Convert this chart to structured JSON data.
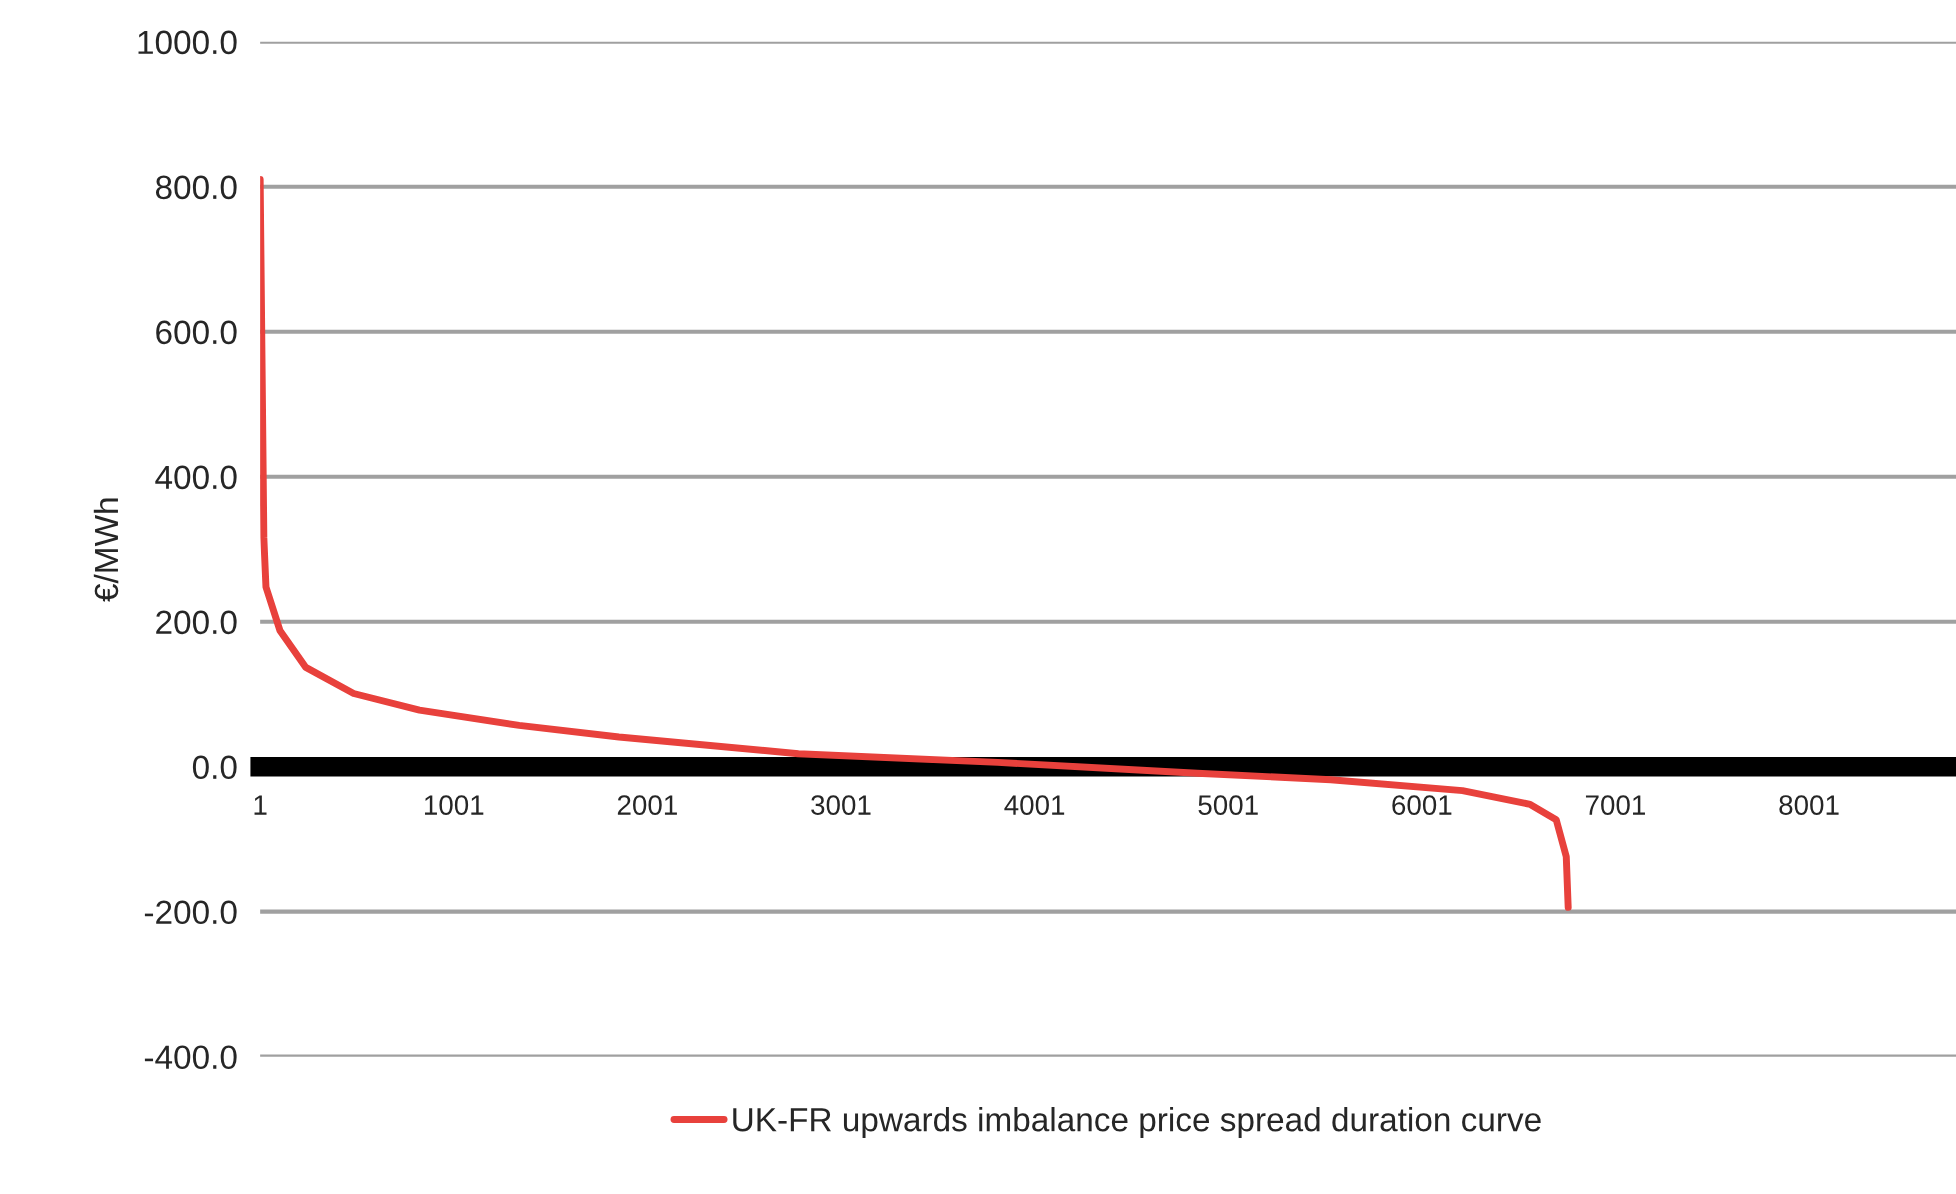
{
  "chart_data": {
    "type": "line",
    "ylabel": "€/MWh",
    "xlim": [
      1,
      8760
    ],
    "xticks": [
      1,
      1001,
      2001,
      3001,
      4001,
      5001,
      6001,
      7001,
      8001
    ],
    "ylim": [
      -400,
      1000
    ],
    "yticks": [
      {
        "value": -400,
        "label": "-400.0"
      },
      {
        "value": -200,
        "label": "-200.0"
      },
      {
        "value": 0,
        "label": "0.0"
      },
      {
        "value": 200,
        "label": "200.0"
      },
      {
        "value": 400,
        "label": "400.0"
      },
      {
        "value": 600,
        "label": "600.0"
      },
      {
        "value": 800,
        "label": "800.0"
      },
      {
        "value": 1000,
        "label": "1000.0"
      }
    ],
    "grid": "y",
    "legend": "bottom",
    "marker": "none",
    "line_style": "solid",
    "series": [
      {
        "name": "UK-FR upwards imbalance price spread duration curve",
        "color": "#e8413c",
        "x": [
          1,
          20,
          31,
          103,
          237,
          484,
          824,
          1339,
          1854,
          2781,
          3811,
          4841,
          5531,
          6211,
          6561,
          6695,
          6747,
          6757
        ],
        "values": [
          810,
          316,
          248,
          188,
          137,
          101,
          78,
          57,
          41,
          18,
          6,
          -9,
          -18,
          -33,
          -52,
          -73,
          -124,
          -194
        ]
      }
    ]
  }
}
